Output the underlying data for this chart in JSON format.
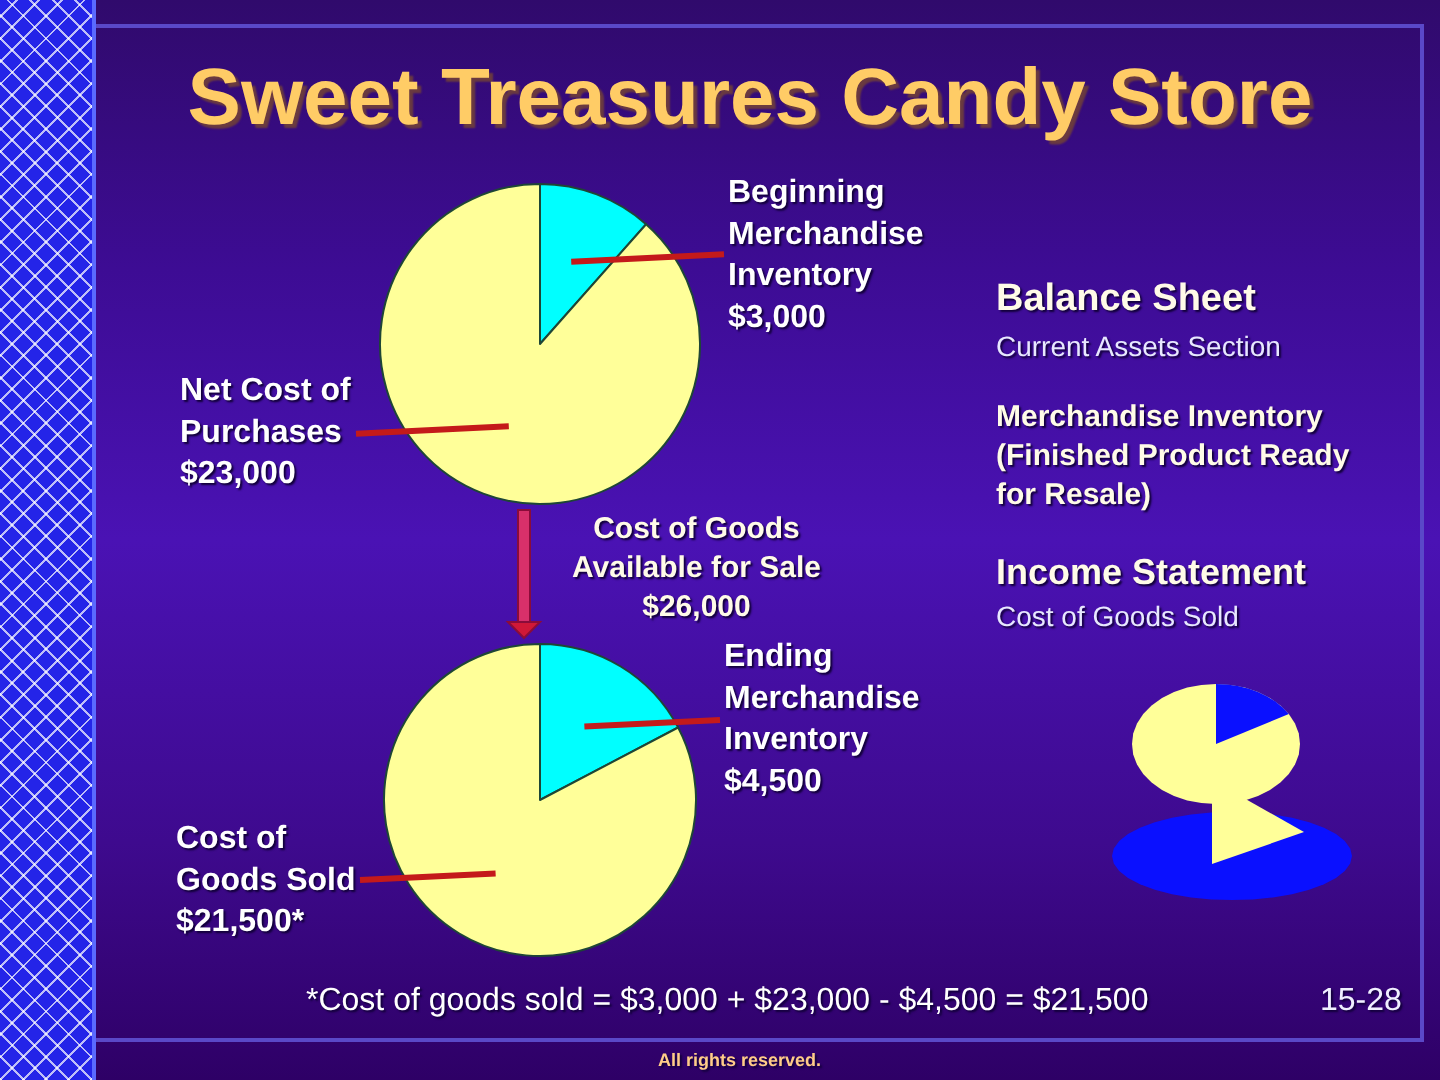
{
  "chart_data": [
    {
      "type": "pie",
      "title": "Sweet Treasures Candy Store",
      "categories": [
        "Beginning Merchandise Inventory",
        "Net Cost of Purchases"
      ],
      "values": [
        3000,
        23000
      ],
      "value_labels": [
        "$3,000",
        "$23,000"
      ],
      "colors": [
        "#00ffff",
        "#ffff99"
      ],
      "annotations": [
        "Cost of Goods Available for Sale $26,000"
      ]
    },
    {
      "type": "pie",
      "categories": [
        "Ending Merchandise Inventory",
        "Cost of Goods Sold"
      ],
      "values": [
        4500,
        21500
      ],
      "value_labels": [
        "$4,500",
        "$21,500*"
      ],
      "colors": [
        "#00ffff",
        "#ffff99"
      ],
      "annotations": [
        "*Cost of goods sold = $3,000 + $23,000 - $4,500 = $21,500",
        "15-28",
        "All rights reserved."
      ]
    },
    {
      "type": "other",
      "annotations": [
        "Balance Sheet",
        "Current Assets Section",
        "Merchandise Inventory (Finished Product Ready for Resale)",
        "Income Statement",
        "Cost of Goods Sold"
      ]
    }
  ]
}
